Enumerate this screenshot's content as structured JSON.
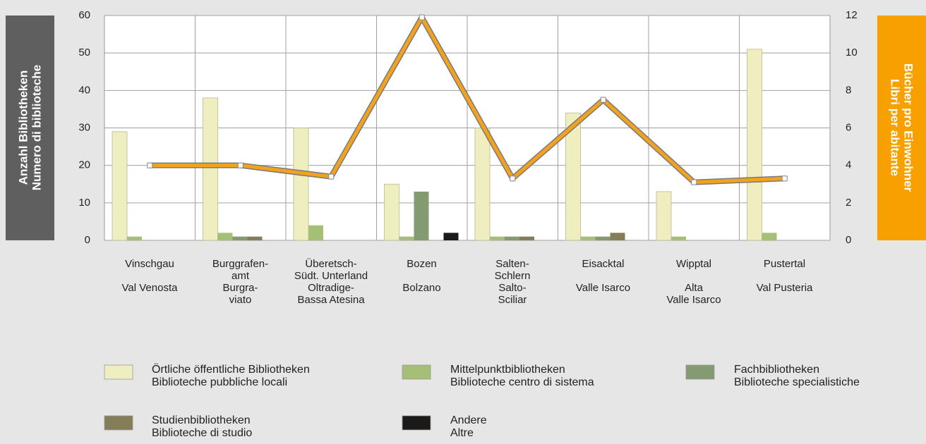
{
  "chart_data": {
    "type": "bar",
    "y_label": "Anzahl Bibliotheken\nNumero di biblioteche",
    "y2_label": "Bücher pro Einwohner\nLibri per abitante",
    "categories": [
      "Vinschgau\n\nVal Venosta",
      "Burggrafen-\namt\nBurgra-\nviato",
      "Überetsch-\nSüdt. Unterland\nOltradige-\nBassa Atesina",
      "Bozen\n\nBolzano",
      "Salten-\nSchlern\nSalto-\nSciliar",
      "Eisacktal\n\nValle Isarco",
      "Wipptal\n\nAlta\nValle Isarco",
      "Pustertal\n\nVal Pusteria"
    ],
    "series": [
      {
        "name": "Örtliche öffentliche Bibliotheken\nBiblioteche pubbliche locali",
        "color": "#eeeec0",
        "values": [
          29,
          38,
          30,
          15,
          30,
          34,
          13,
          51
        ]
      },
      {
        "name": "Mittelpunktbibliotheken\nBiblioteche centro di sistema",
        "color": "#a6bf76",
        "values": [
          1,
          2,
          4,
          1,
          1,
          1,
          1,
          2
        ]
      },
      {
        "name": "Fachbibliotheken\nBiblioteche specialistiche",
        "color": "#839a73",
        "values": [
          0,
          1,
          0,
          13,
          1,
          1,
          0,
          0
        ]
      },
      {
        "name": "Studienbibliotheken\nBiblioteche di studio",
        "color": "#857c59",
        "values": [
          0,
          1,
          0,
          0,
          1,
          2,
          0,
          0
        ]
      },
      {
        "name": "Andere\nAltre",
        "color": "#1c1a18",
        "values": [
          0,
          0,
          0,
          2,
          0,
          0,
          0,
          0
        ]
      },
      {
        "type": "line",
        "axis": "y2",
        "color": "#f2a21e",
        "values": [
          4,
          4,
          3.4,
          11.9,
          3.3,
          7.5,
          3.1,
          3.3
        ]
      }
    ],
    "ylim": [
      0,
      60
    ],
    "yticks": [
      0,
      10,
      20,
      30,
      40,
      50,
      60
    ],
    "y2lim": [
      0,
      12
    ],
    "y2ticks": [
      0,
      2,
      4,
      6,
      8,
      10,
      12
    ],
    "grid": true
  }
}
